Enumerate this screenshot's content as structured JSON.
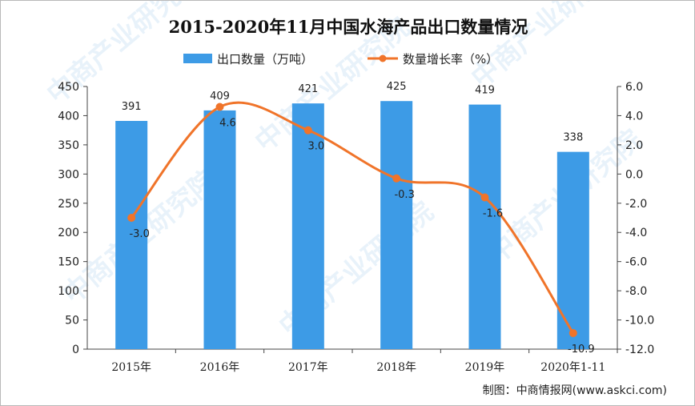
{
  "watermark": "中商产业研究院",
  "source": "制图：中商情报网(www.askci.com)",
  "chart_data": {
    "type": "bar",
    "title": "2015-2020年11月中国水海产品出口数量情况",
    "categories": [
      "2015年",
      "2016年",
      "2017年",
      "2018年",
      "2019年",
      "2020年1-11"
    ],
    "series": [
      {
        "name": "出口数量（万吨）",
        "kind": "bar",
        "axis": "left",
        "color": "#3d9be6",
        "values": [
          391,
          409,
          421,
          425,
          419,
          338
        ],
        "labels": [
          "391",
          "409",
          "421",
          "425",
          "419",
          "338"
        ]
      },
      {
        "name": "数量增长率（%）",
        "kind": "line",
        "axis": "right",
        "color": "#f0742a",
        "values": [
          -3.0,
          4.6,
          3.0,
          -0.3,
          -1.6,
          -10.9
        ],
        "labels": [
          "-3.0",
          "4.6",
          "3.0",
          "-0.3",
          "-1.6",
          "-10.9"
        ]
      }
    ],
    "y_left": {
      "min": 0,
      "max": 450,
      "ticks": [
        "0",
        "50",
        "100",
        "150",
        "200",
        "250",
        "300",
        "350",
        "400",
        "450"
      ]
    },
    "y_right": {
      "min": -12,
      "max": 6,
      "ticks": [
        "-12.0",
        "-10.0",
        "-8.0",
        "-6.0",
        "-4.0",
        "-2.0",
        "0.0",
        "2.0",
        "4.0",
        "6.0"
      ]
    },
    "legend_position": "top",
    "grid": false
  }
}
